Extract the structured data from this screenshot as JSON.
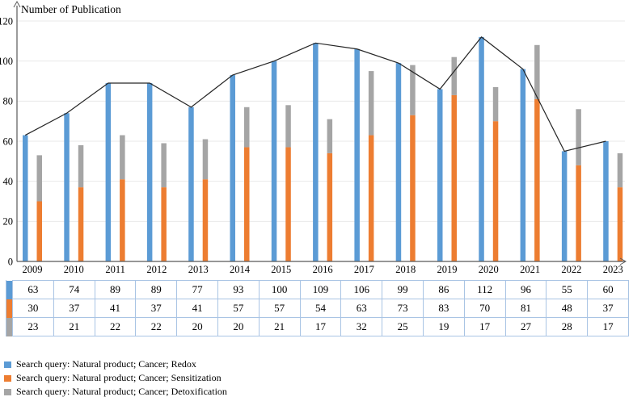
{
  "chart_data": {
    "type": "bar",
    "subtype": "grouped: single bar series with line overlay + one stacked bar pair",
    "title": "",
    "ylabel": "Number of Publication",
    "xlabel": "",
    "ylim": [
      0,
      120
    ],
    "yticks": [
      0,
      20,
      40,
      60,
      80,
      100,
      120
    ],
    "grid": true,
    "legend_position": "bottom-left",
    "categories": [
      "2009",
      "2010",
      "2011",
      "2012",
      "2013",
      "2014",
      "2015",
      "2016",
      "2017",
      "2018",
      "2019",
      "2020",
      "2021",
      "2022",
      "2023"
    ],
    "series": [
      {
        "name": "Search query: Natural product; Cancer; Redox",
        "render": "bar-with-line",
        "color": "#5B9BD5",
        "values": [
          63,
          74,
          89,
          89,
          77,
          93,
          100,
          109,
          106,
          99,
          86,
          112,
          96,
          55,
          60
        ]
      },
      {
        "name": "Search query: Natural product; Cancer; Sensitization",
        "render": "stacked-bar-base",
        "color": "#ED7D31",
        "values": [
          30,
          37,
          41,
          37,
          41,
          57,
          57,
          54,
          63,
          73,
          83,
          70,
          81,
          48,
          37
        ]
      },
      {
        "name": "Search query: Natural product; Cancer; Detoxification",
        "render": "stacked-bar-top",
        "color": "#A5A5A5",
        "values": [
          23,
          21,
          22,
          22,
          20,
          20,
          21,
          17,
          32,
          25,
          19,
          17,
          27,
          28,
          17
        ]
      }
    ],
    "line_color": "#262626",
    "axis_color": "#595959",
    "gridline_color": "#E9E9E9",
    "table_border_color": "#A9C4E4"
  }
}
